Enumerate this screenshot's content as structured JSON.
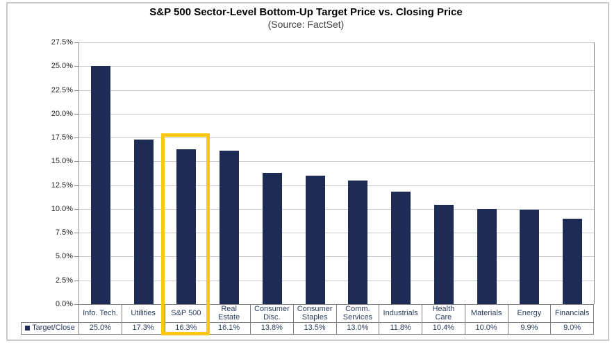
{
  "title": "S&P 500 Sector-Level Bottom-Up Target Price vs. Closing Price",
  "subtitle": "(Source: FactSet)",
  "legend": {
    "label": "Target/Close"
  },
  "colors": {
    "bar": "#1E2C55",
    "highlight_border": "#FFC613",
    "gridline": "#C9C9C9",
    "axis": "#8C8C8C",
    "table_border": "#7F7F7F",
    "table_text": "#2B3C5E",
    "axis_text": "#262626",
    "subtitle_text": "#3F3F3F"
  },
  "chart_data": {
    "type": "bar",
    "title": "S&P 500 Sector-Level Bottom-Up Target Price vs. Closing Price",
    "subtitle": "(Source: FactSet)",
    "categories": [
      "Info. Tech.",
      "Utilities",
      "S&P 500",
      "Real Estate",
      "Consumer Disc.",
      "Consumer Staples",
      "Comm. Services",
      "Industrials",
      "Health Care",
      "Materials",
      "Energy",
      "Financials"
    ],
    "category_display": [
      "Info. Tech.",
      "Utilities",
      "S&P 500",
      "Real\nEstate",
      "Consumer\nDisc.",
      "Consumer\nStaples",
      "Comm.\nServices",
      "Industrials",
      "Health\nCare",
      "Materials",
      "Energy",
      "Financials"
    ],
    "series": [
      {
        "name": "Target/Close",
        "values": [
          25.0,
          17.3,
          16.3,
          16.1,
          13.8,
          13.5,
          13.0,
          11.8,
          10.4,
          10.0,
          9.9,
          9.0
        ]
      }
    ],
    "value_labels": [
      "25.0%",
      "17.3%",
      "16.3%",
      "16.1%",
      "13.8%",
      "13.5%",
      "13.0%",
      "11.8%",
      "10.4%",
      "10.0%",
      "9.9%",
      "9.0%"
    ],
    "ytick_labels": [
      "27.5%",
      "25.0%",
      "22.5%",
      "20.0%",
      "17.5%",
      "15.0%",
      "12.5%",
      "10.0%",
      "7.5%",
      "5.0%",
      "2.5%",
      "0.0%"
    ],
    "ylim": [
      0,
      27.5
    ],
    "ytick_step": 2.5,
    "xlabel": "",
    "ylabel": "",
    "grid": true,
    "legend_position": "bottom-left",
    "highlighted_category": "S&P 500"
  }
}
